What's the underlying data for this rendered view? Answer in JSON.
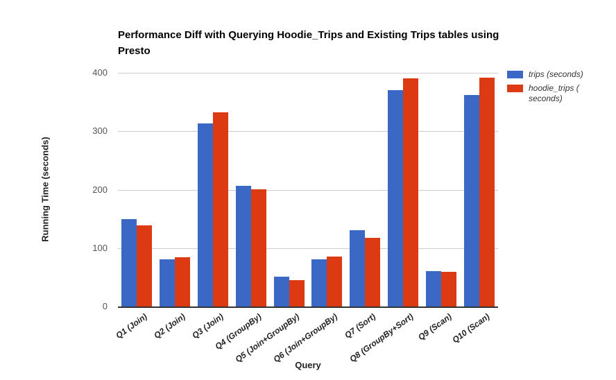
{
  "chart_data": {
    "type": "bar",
    "title": "Performance Diff with Querying Hoodie_Trips and Existing Trips tables using Presto",
    "xlabel": "Query",
    "ylabel": "Running Time (seconds)",
    "ylim": [
      0,
      400
    ],
    "yticks": [
      400,
      300,
      200,
      100,
      0
    ],
    "grid": true,
    "legend_position": "top-right",
    "grid_color": "#cccccc",
    "baseline_color": "#333333",
    "categories": [
      "Q1 (Join)",
      "Q2 (Join)",
      "Q3 (Join)",
      "Q4 (GroupBy)",
      "Q5 (Join+GroupBy)",
      "Q6 (Join+GroupBy)",
      "Q7 (Sort)",
      "Q8 (GroupBy+Sort)",
      "Q9 (Scan)",
      "Q10 (Scan)"
    ],
    "series": [
      {
        "key": "trips",
        "name": "trips (seconds)",
        "color": "#3B67C5",
        "values": [
          150,
          81,
          313,
          207,
          51,
          81,
          131,
          370,
          60,
          362
        ]
      },
      {
        "key": "hoodie_trips",
        "name": "hoodie_trips ( seconds)",
        "color": "#DB3A12",
        "values": [
          139,
          84,
          332,
          201,
          45,
          85,
          117,
          390,
          59,
          392
        ]
      }
    ]
  }
}
